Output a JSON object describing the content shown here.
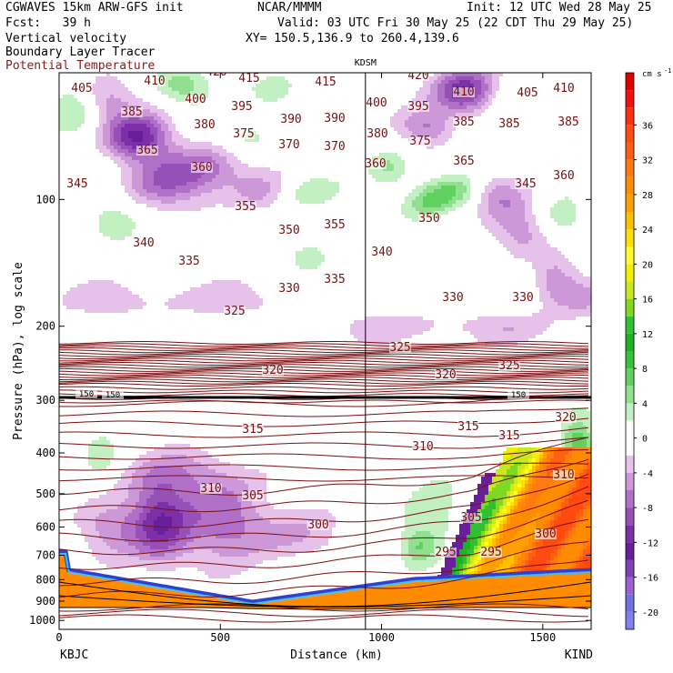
{
  "header": {
    "model": "CGWAVES 15km ARW-GFS init",
    "org": "NCAR/MMMM",
    "init": "Init: 12 UTC Wed 28 May 25",
    "fcst": "Fcst:   39 h",
    "valid": "Valid: 03 UTC Fri 30 May 25 (22 CDT Thu 29 May 25)",
    "field1": "Vertical velocity",
    "field2": "Boundary Layer Tracer",
    "field3": "Potential Temperature",
    "xy": "XY= 150.5,136.9 to 260.4,139.6"
  },
  "colors": {
    "theta": "#7a0f10",
    "tracer": "#000000"
  },
  "chart_data": {
    "type": "heatmap",
    "station_marker": "KDSM",
    "station_distance_km": 950,
    "xlabel": "Distance (km)",
    "ylabel": "Pressure (hPa), log scale",
    "x_endpoints": {
      "left": "KBJC",
      "right": "KIND"
    },
    "xlim": [
      0,
      1650
    ],
    "ylim": [
      1050,
      50
    ],
    "y_scale": "log",
    "x_ticks": [
      "0",
      "500",
      "1000",
      "1500"
    ],
    "x_tick_values": [
      0,
      500,
      1000,
      1500
    ],
    "y_ticks": [
      "100",
      "200",
      "300",
      "400",
      "500",
      "600",
      "700",
      "800",
      "900",
      "1000"
    ],
    "y_tick_values": [
      100,
      200,
      300,
      400,
      500,
      600,
      700,
      800,
      900,
      1000
    ],
    "colorbar": {
      "unit": "cm s",
      "unit_exp": "-1",
      "tick_labels": [
        "36",
        "32",
        "28",
        "24",
        "20",
        "16",
        "12",
        "8",
        "4",
        "0",
        "-4",
        "-8",
        "-12",
        "-16",
        "-20"
      ],
      "tick_values": [
        36,
        32,
        28,
        24,
        20,
        16,
        12,
        8,
        4,
        0,
        -4,
        -8,
        -12,
        -16,
        -20
      ],
      "range": [
        -22,
        42
      ],
      "colors": [
        [
          "#8080f0",
          -22,
          -20
        ],
        [
          "#7070e0",
          -20,
          -18
        ],
        [
          "#9a5fd0",
          -18,
          -16
        ],
        [
          "#8040b8",
          -16,
          -14
        ],
        [
          "#6a1f9a",
          -14,
          -12
        ],
        [
          "#7d2fa8",
          -12,
          -10
        ],
        [
          "#9650b8",
          -10,
          -8
        ],
        [
          "#b070c8",
          -8,
          -6
        ],
        [
          "#cc98d8",
          -6,
          -4
        ],
        [
          "#e6c2ea",
          -4,
          -2
        ],
        [
          "#ffffff",
          -2,
          2
        ],
        [
          "#c2f0c2",
          2,
          4
        ],
        [
          "#90e090",
          4,
          6
        ],
        [
          "#60d060",
          6,
          8
        ],
        [
          "#3cc03c",
          8,
          10
        ],
        [
          "#20b020",
          10,
          12
        ],
        [
          "#30c030",
          12,
          14
        ],
        [
          "#80d820",
          14,
          16
        ],
        [
          "#c8e820",
          16,
          18
        ],
        [
          "#f0f000",
          18,
          20
        ],
        [
          "#ffff30",
          20,
          22
        ],
        [
          "#ffe000",
          22,
          24
        ],
        [
          "#ffc000",
          24,
          26
        ],
        [
          "#ffa000",
          26,
          28
        ],
        [
          "#ff8c00",
          28,
          30
        ],
        [
          "#ff7a10",
          30,
          32
        ],
        [
          "#ff6010",
          32,
          34
        ],
        [
          "#ff4a10",
          34,
          36
        ],
        [
          "#ff3010",
          36,
          38
        ],
        [
          "#f01010",
          38,
          40
        ],
        [
          "#e00000",
          40,
          42
        ]
      ]
    },
    "theta_label_values": [
      [
        90,
        100,
        405
      ],
      [
        170,
        92,
        410
      ],
      [
        238,
        82,
        420
      ],
      [
        274,
        89,
        415
      ],
      [
        358,
        93,
        415
      ],
      [
        460,
        86,
        420
      ],
      [
        510,
        104,
        410
      ],
      [
        580,
        105,
        405
      ],
      [
        620,
        100,
        410
      ],
      [
        215,
        112,
        400
      ],
      [
        145,
        126,
        385
      ],
      [
        266,
        120,
        395
      ],
      [
        320,
        134,
        390
      ],
      [
        368,
        133,
        390
      ],
      [
        414,
        116,
        400
      ],
      [
        460,
        120,
        395
      ],
      [
        510,
        137,
        385
      ],
      [
        560,
        139,
        385
      ],
      [
        625,
        137,
        385
      ],
      [
        225,
        140,
        380
      ],
      [
        268,
        150,
        375
      ],
      [
        415,
        150,
        380
      ],
      [
        462,
        158,
        375
      ],
      [
        162,
        168,
        365
      ],
      [
        222,
        187,
        360
      ],
      [
        318,
        162,
        370
      ],
      [
        368,
        164,
        370
      ],
      [
        413,
        183,
        360
      ],
      [
        510,
        180,
        365
      ],
      [
        620,
        196,
        360
      ],
      [
        85,
        205,
        345
      ],
      [
        270,
        230,
        355
      ],
      [
        318,
        256,
        350
      ],
      [
        368,
        250,
        355
      ],
      [
        472,
        243,
        350
      ],
      [
        578,
        205,
        345
      ],
      [
        158,
        270,
        340
      ],
      [
        208,
        290,
        335
      ],
      [
        318,
        320,
        330
      ],
      [
        368,
        310,
        335
      ],
      [
        420,
        280,
        340
      ],
      [
        498,
        330,
        330
      ],
      [
        575,
        330,
        330
      ],
      [
        258,
        345,
        325
      ],
      [
        440,
        385,
        325
      ],
      [
        560,
        405,
        325
      ],
      [
        300,
        410,
        320
      ],
      [
        490,
        415,
        320
      ],
      [
        622,
        462,
        320
      ],
      [
        515,
        472,
        315
      ],
      [
        278,
        475,
        315
      ],
      [
        465,
        494,
        310
      ],
      [
        560,
        482,
        315
      ],
      [
        232,
        540,
        310
      ],
      [
        620,
        525,
        310
      ],
      [
        278,
        548,
        305
      ],
      [
        518,
        572,
        305
      ],
      [
        350,
        580,
        300
      ],
      [
        600,
        590,
        300
      ],
      [
        490,
        610,
        295
      ],
      [
        540,
        610,
        295
      ],
      [
        95,
        435,
        150
      ],
      [
        124,
        436,
        150
      ],
      [
        570,
        436,
        150
      ]
    ]
  }
}
